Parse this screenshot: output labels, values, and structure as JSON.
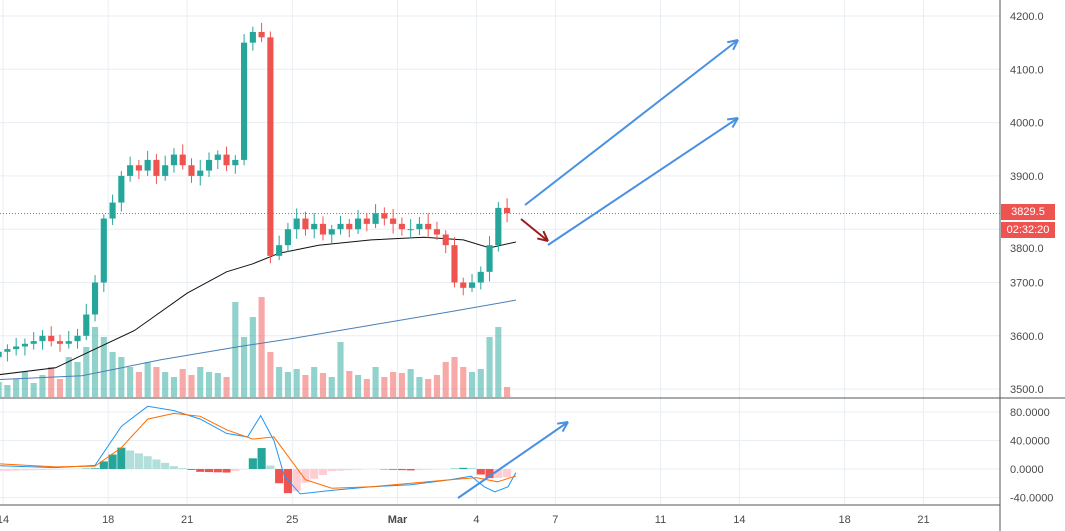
{
  "chart_data": {
    "type": "candlestick",
    "price_axis": {
      "ticks": [
        3500,
        3600,
        3700,
        3800,
        3900,
        4000,
        4100,
        4200
      ],
      "tick_labels": [
        "3500.0",
        "3600.0",
        "3700.0",
        "3800.0",
        "3900.0",
        "4000.0",
        "4100.0",
        "4200.0"
      ],
      "range": [
        3475,
        4240
      ]
    },
    "macd_axis": {
      "ticks": [
        -40,
        0,
        40,
        80
      ],
      "tick_labels": [
        "-40.0000",
        "0.0000",
        "40.0000",
        "80.0000"
      ],
      "range": [
        -50,
        100
      ]
    },
    "x_axis": {
      "ticks": [
        {
          "day": 14,
          "label": "14"
        },
        {
          "day": 18,
          "label": "18"
        },
        {
          "day": 21,
          "label": "21"
        },
        {
          "day": 25,
          "label": "25"
        },
        {
          "day": 29,
          "label": "Mar"
        },
        {
          "day": 32,
          "label": "4"
        },
        {
          "day": 35,
          "label": "7"
        },
        {
          "day": 39,
          "label": "11"
        },
        {
          "day": 42,
          "label": "14"
        },
        {
          "day": 46,
          "label": "18"
        },
        {
          "day": 49,
          "label": "21"
        }
      ]
    },
    "candle_start_day": 13.5,
    "candles_per_day": 3,
    "closes": [
      3560,
      3570,
      3575,
      3580,
      3585,
      3590,
      3600,
      3590,
      3585,
      3590,
      3600,
      3640,
      3700,
      3820,
      3850,
      3900,
      3920,
      3910,
      3930,
      3900,
      3920,
      3940,
      3920,
      3900,
      3910,
      3930,
      3940,
      3920,
      3930,
      4150,
      4170,
      4160,
      3750,
      3770,
      3800,
      3820,
      3800,
      3810,
      3790,
      3800,
      3810,
      3800,
      3820,
      3810,
      3830,
      3820,
      3810,
      3800,
      3800,
      3810,
      3800,
      3790,
      3770,
      3700,
      3690,
      3700,
      3720,
      3770,
      3840,
      3830
    ],
    "volumes": [
      20,
      15,
      12,
      18,
      25,
      14,
      22,
      30,
      18,
      40,
      35,
      50,
      70,
      60,
      45,
      40,
      30,
      25,
      35,
      30,
      25,
      20,
      28,
      22,
      30,
      25,
      24,
      20,
      95,
      60,
      80,
      100,
      45,
      30,
      25,
      28,
      22,
      30,
      24,
      20,
      55,
      26,
      22,
      18,
      30,
      20,
      25,
      24,
      28,
      20,
      18,
      22,
      35,
      40,
      30,
      25,
      28,
      60,
      70,
      10
    ],
    "ma_black": [
      [
        13.5,
        3525
      ],
      [
        16,
        3540
      ],
      [
        17.5,
        3575
      ],
      [
        19,
        3610
      ],
      [
        21,
        3680
      ],
      [
        22.5,
        3720
      ],
      [
        23.5,
        3735
      ],
      [
        24.5,
        3755
      ],
      [
        26,
        3770
      ],
      [
        28,
        3780
      ],
      [
        30,
        3785
      ],
      [
        31.5,
        3780
      ],
      [
        32.5,
        3765
      ],
      [
        33.5,
        3776
      ]
    ],
    "ma_blue": [
      [
        13.5,
        3517
      ],
      [
        17,
        3525
      ],
      [
        20,
        3555
      ],
      [
        23,
        3580
      ],
      [
        25,
        3595
      ],
      [
        28,
        3620
      ],
      [
        31,
        3645
      ],
      [
        33.5,
        3667
      ]
    ],
    "macd": [
      [
        13.5,
        5
      ],
      [
        16,
        2
      ],
      [
        17.5,
        5
      ],
      [
        18.5,
        60
      ],
      [
        19.5,
        88
      ],
      [
        20.5,
        82
      ],
      [
        21.5,
        70
      ],
      [
        22.5,
        50
      ],
      [
        23.3,
        45
      ],
      [
        23.8,
        75
      ],
      [
        24.3,
        40
      ],
      [
        24.7,
        -10
      ],
      [
        25.3,
        -35
      ],
      [
        26.5,
        -30
      ],
      [
        28,
        -25
      ],
      [
        29.5,
        -22
      ],
      [
        31,
        -15
      ],
      [
        31.8,
        -10
      ],
      [
        32.3,
        -25
      ],
      [
        32.7,
        -32
      ],
      [
        33.2,
        -25
      ],
      [
        33.5,
        -5
      ]
    ],
    "signal": [
      [
        13.5,
        8
      ],
      [
        16,
        3
      ],
      [
        17.5,
        4
      ],
      [
        18.5,
        30
      ],
      [
        19.5,
        70
      ],
      [
        20.5,
        78
      ],
      [
        21.5,
        74
      ],
      [
        22.5,
        55
      ],
      [
        23.5,
        42
      ],
      [
        24.3,
        45
      ],
      [
        24.8,
        20
      ],
      [
        25.5,
        -15
      ],
      [
        26.5,
        -27
      ],
      [
        28,
        -25
      ],
      [
        29.5,
        -20
      ],
      [
        31,
        -15
      ],
      [
        32,
        -12
      ],
      [
        32.8,
        -18
      ],
      [
        33.5,
        -10
      ]
    ],
    "last_price": "3829.5",
    "countdown": "02:32:20",
    "colors": {
      "up": "#26a69a",
      "down": "#ef5350",
      "arrow": "#4a90e2",
      "arrow_down": "#9b1c1c"
    }
  }
}
